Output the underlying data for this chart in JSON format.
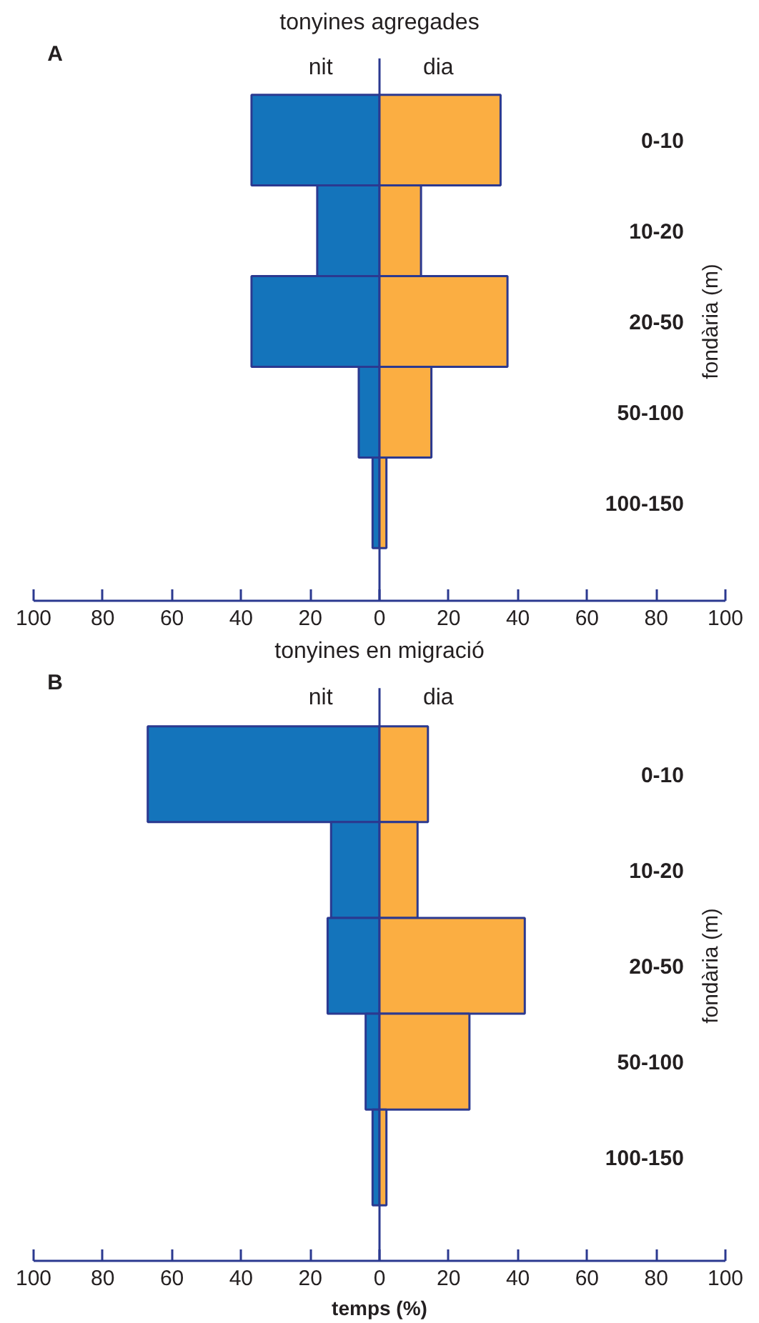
{
  "chart_data": [
    {
      "type": "bar",
      "orientation": "horizontal",
      "stacked": true,
      "title": "tonyines agregades",
      "ylabel": "fondària (m)",
      "annotations": [
        "A"
      ],
      "categories": [
        "0-10",
        "10-20",
        "20-50",
        "50-100",
        "100-150"
      ],
      "series": [
        {
          "name": "nit",
          "color": "#1474bb",
          "values": [
            -37,
            -18,
            -37,
            -6,
            -2
          ]
        },
        {
          "name": "dia",
          "color": "#fbae42",
          "values": [
            35,
            12,
            37,
            15,
            2
          ]
        }
      ],
      "xlim": [
        -100,
        100
      ],
      "xticks": [
        {
          "value": -100,
          "label": "100"
        },
        {
          "value": -80,
          "label": "80"
        },
        {
          "value": -60,
          "label": "60"
        },
        {
          "value": -40,
          "label": "40"
        },
        {
          "value": -20,
          "label": "20"
        },
        0,
        20,
        40,
        60,
        80,
        100
      ],
      "ref_lines": [
        {
          "axis": "x",
          "value": 0,
          "color": "#2b3990"
        }
      ]
    },
    {
      "type": "bar",
      "orientation": "horizontal",
      "stacked": true,
      "title": "tonyines en migració",
      "xlabel": "temps (%)",
      "ylabel": "fondària (m)",
      "annotations": [
        "B"
      ],
      "categories": [
        "0-10",
        "10-20",
        "20-50",
        "50-100",
        "100-150"
      ],
      "series": [
        {
          "name": "nit",
          "color": "#1474bb",
          "values": [
            -67,
            -14,
            -15,
            -4,
            -2
          ]
        },
        {
          "name": "dia",
          "color": "#fbae42",
          "values": [
            14,
            11,
            42,
            26,
            2
          ]
        }
      ],
      "xlim": [
        -100,
        100
      ],
      "xticks": [
        {
          "value": -100,
          "label": "100"
        },
        {
          "value": -80,
          "label": "80"
        },
        {
          "value": -60,
          "label": "60"
        },
        {
          "value": -40,
          "label": "40"
        },
        {
          "value": -20,
          "label": "20"
        },
        0,
        20,
        40,
        60,
        80,
        100
      ],
      "ref_lines": [
        {
          "axis": "x",
          "value": 0,
          "color": "#2b3990"
        }
      ]
    }
  ]
}
